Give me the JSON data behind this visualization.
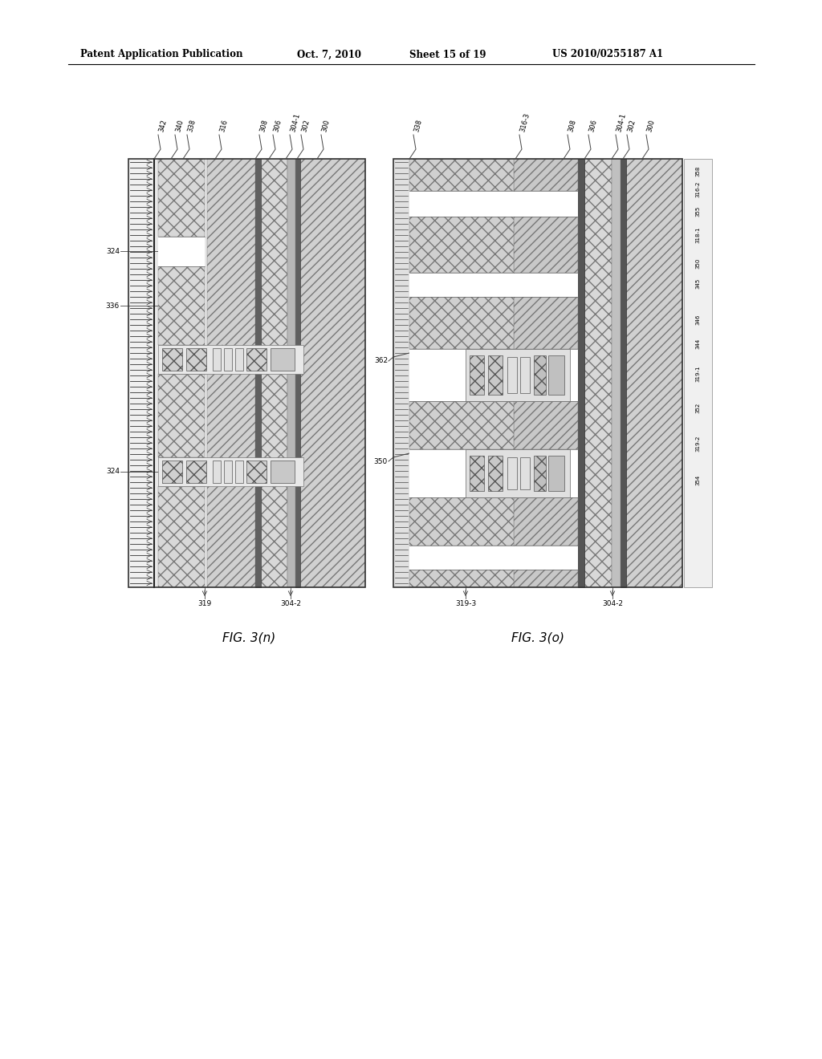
{
  "title_left": "Patent Application Publication",
  "title_mid": "Oct. 7, 2010",
  "title_right_1": "Sheet 15 of 19",
  "title_right_2": "US 2010/0255187 A1",
  "fig_n_label": "FIG. 3(n)",
  "fig_o_label": "FIG. 3(o)",
  "bg_color": "#ffffff"
}
